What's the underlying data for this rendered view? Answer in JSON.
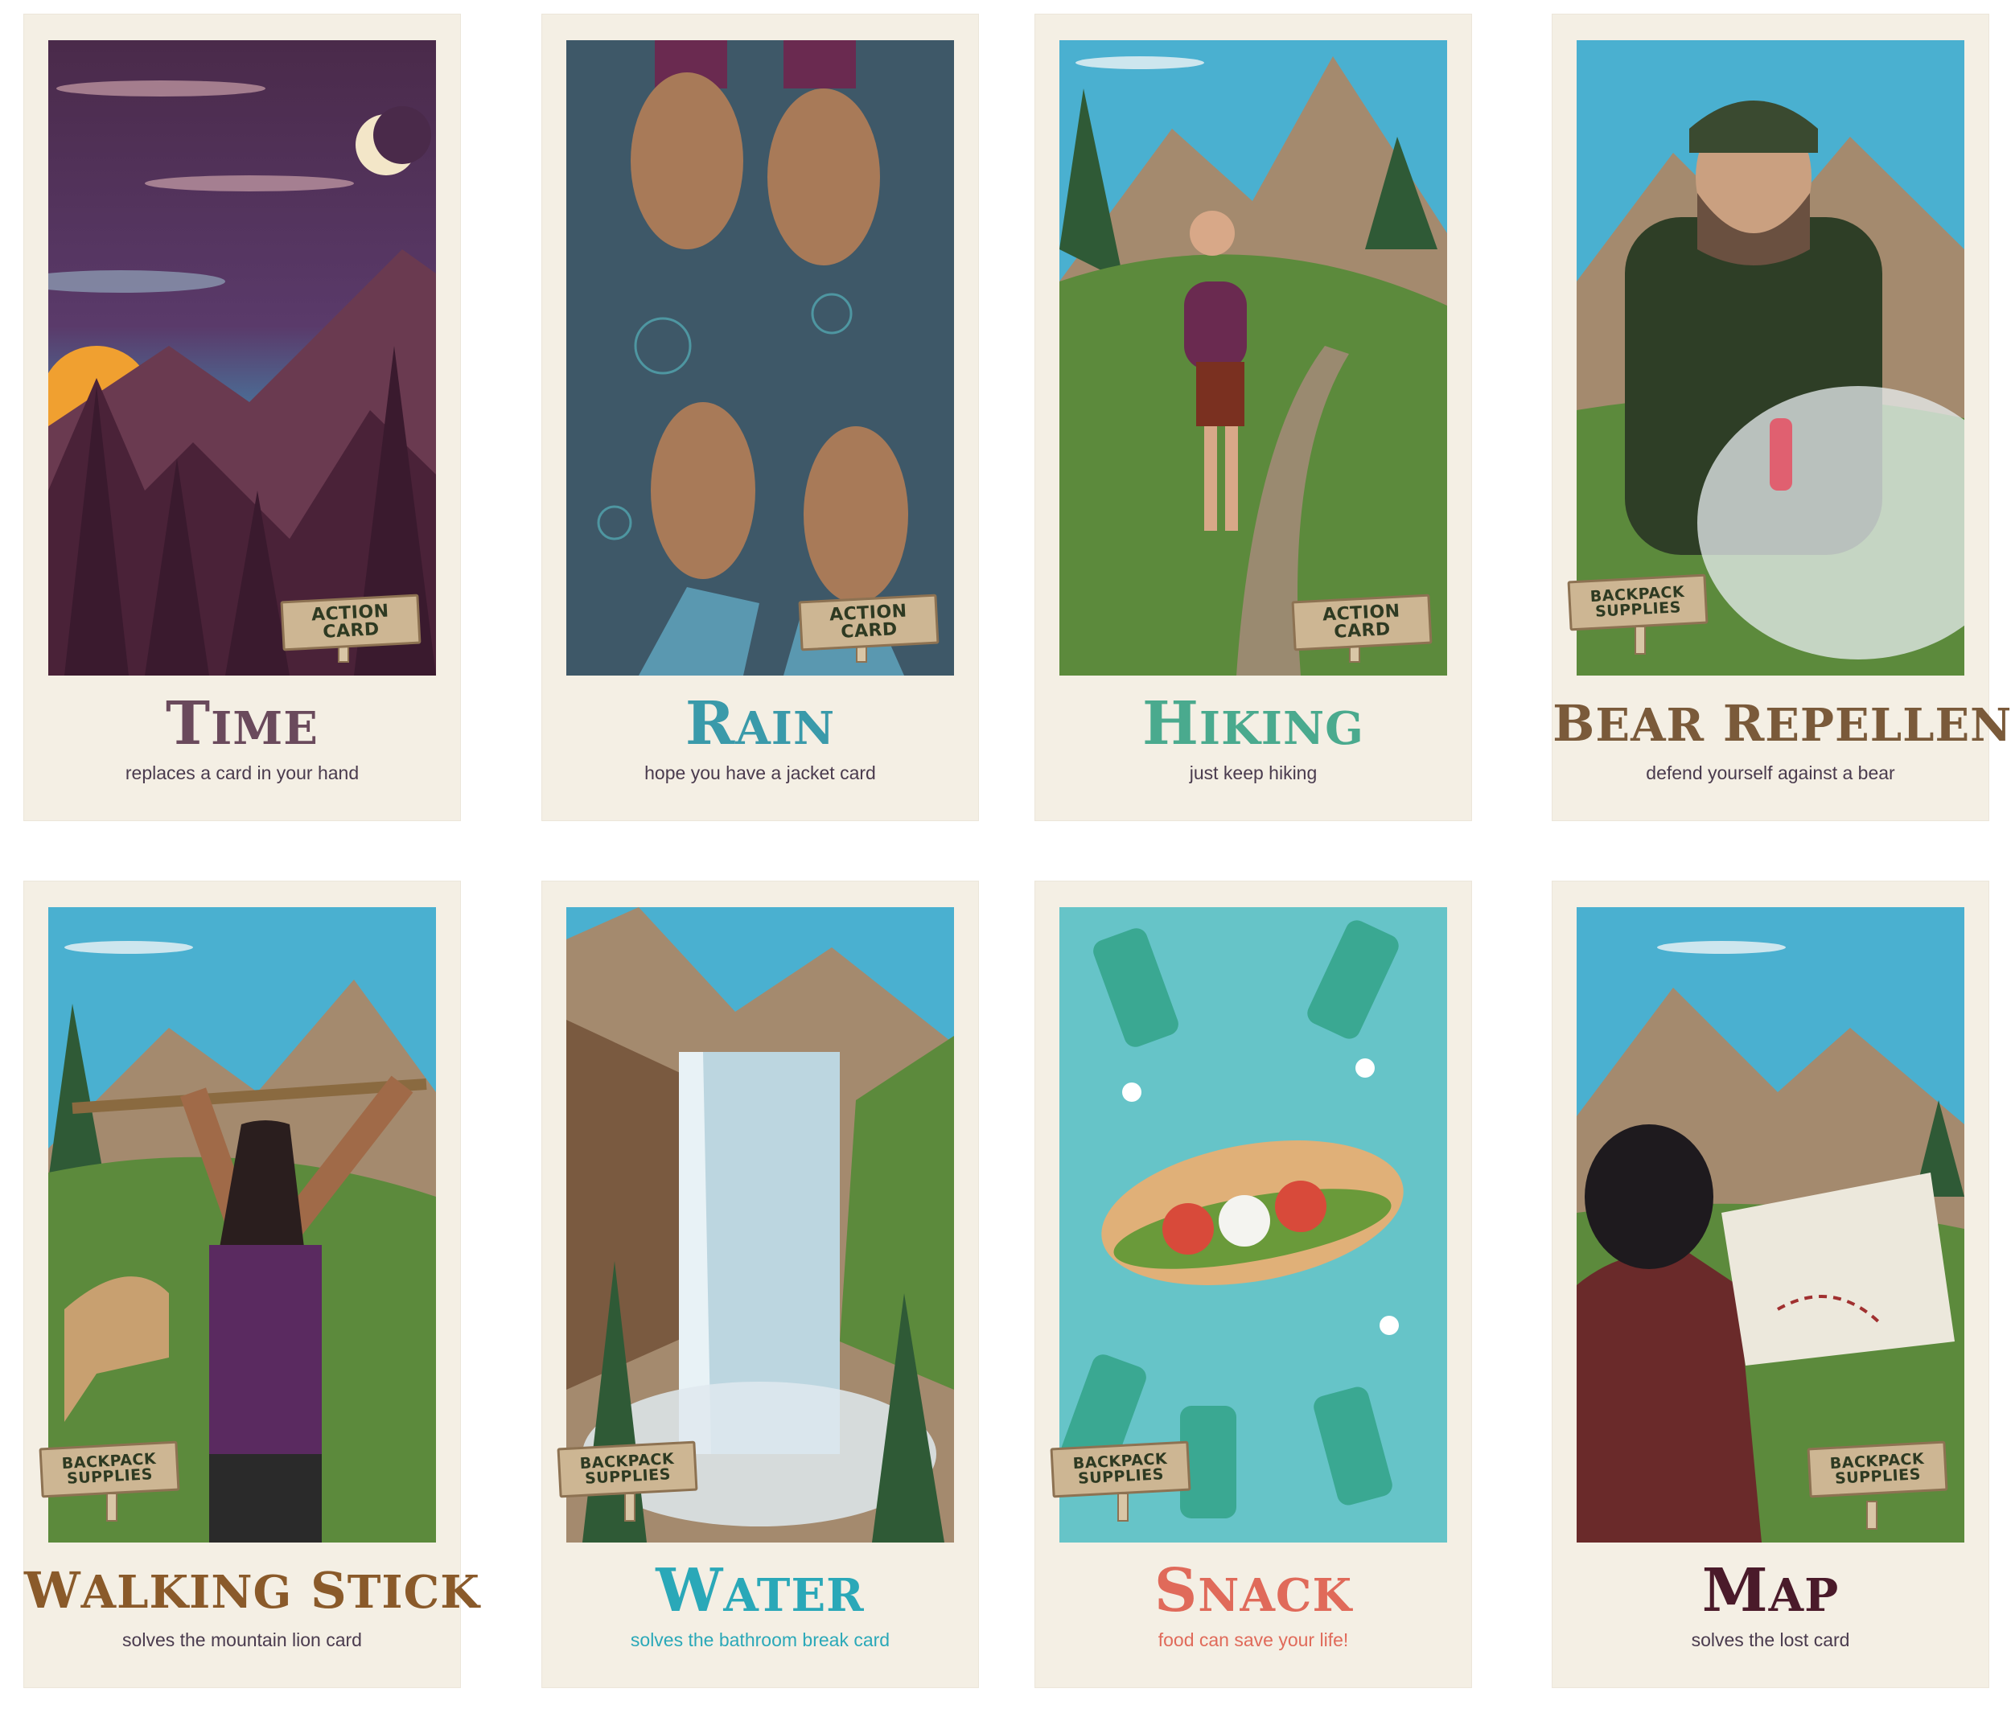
{
  "cards": [
    {
      "title": "Time",
      "subtitle": "replaces a card in your hand",
      "sign": "ACTION CARD",
      "sign_lines": [
        "ACTION CARD"
      ],
      "title_color": "#6a4a5c"
    },
    {
      "title": "Rain",
      "subtitle": "hope you have a jacket card",
      "sign": "ACTION CARD",
      "sign_lines": [
        "ACTION CARD"
      ],
      "title_color": "#3a9aaa"
    },
    {
      "title": "Hiking",
      "subtitle": "just keep hiking",
      "sign": "ACTION CARD",
      "sign_lines": [
        "ACTION CARD"
      ],
      "title_color": "#4aaa8e"
    },
    {
      "title": "Bear Repellent",
      "subtitle": "defend yourself against a bear",
      "sign": "BACKPACK SUPPLIES",
      "sign_lines": [
        "BACKPACK",
        "SUPPLIES"
      ],
      "title_color": "#7a5a3a"
    },
    {
      "title": "Walking Stick",
      "subtitle": "solves the mountain lion card",
      "sign": "BACKPACK SUPPLIES",
      "sign_lines": [
        "BACKPACK",
        "SUPPLIES"
      ],
      "title_color": "#8a5a2a"
    },
    {
      "title": "Water",
      "subtitle": "solves the bathroom break card",
      "sign": "BACKPACK SUPPLIES",
      "sign_lines": [
        "BACKPACK",
        "SUPPLIES"
      ],
      "title_color": "#2aa8b8"
    },
    {
      "title": "Snack",
      "subtitle": "food can save your life!",
      "sign": "BACKPACK SUPPLIES",
      "sign_lines": [
        "BACKPACK",
        "SUPPLIES"
      ],
      "title_color": "#e06a5a"
    },
    {
      "title": "Map",
      "subtitle": "solves the lost card",
      "sign": "BACKPACK SUPPLIES",
      "sign_lines": [
        "BACKPACK",
        "SUPPLIES"
      ],
      "title_color": "#4a1a2a"
    }
  ],
  "palette": {
    "card_bg": "#f4efe4",
    "sign_wood": "#cdb693",
    "sign_text": "#2e3a22",
    "subtitle_text": "#4a3b4e"
  }
}
